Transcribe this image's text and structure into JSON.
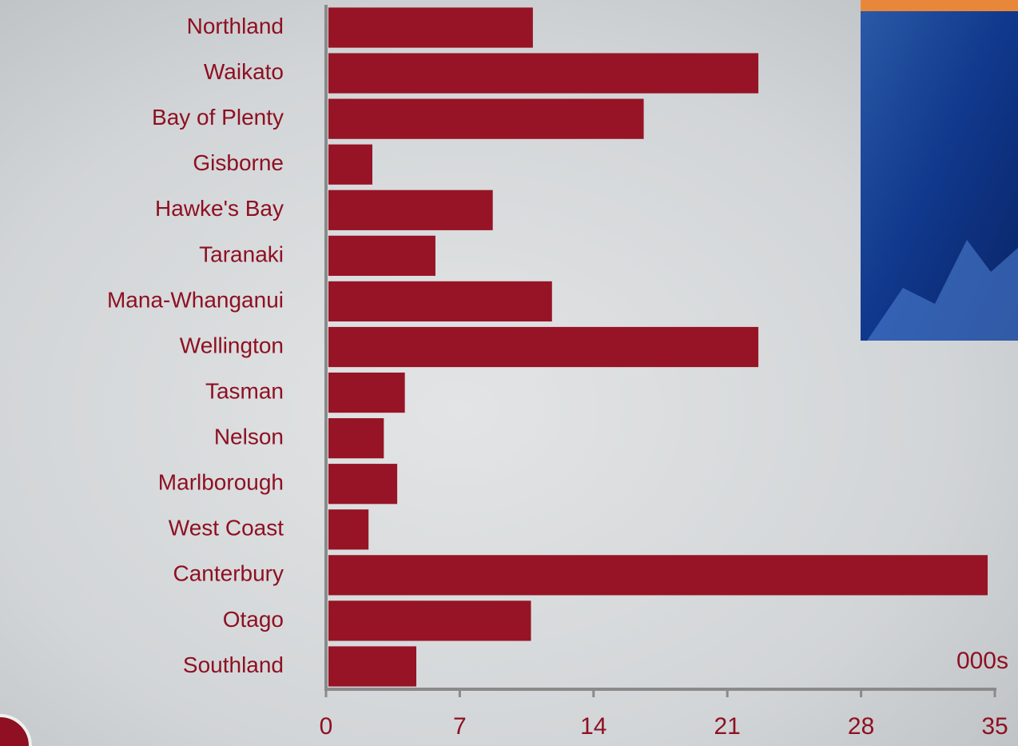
{
  "chart_data": {
    "type": "hbar",
    "unit_label": "000s",
    "categories": [
      "Northland",
      "Waikato",
      "Bay of Plenty",
      "Gisborne",
      "Hawke's Bay",
      "Taranaki",
      "Mana-Whanganui",
      "Wellington",
      "Tasman",
      "Nelson",
      "Marlborough",
      "West Coast",
      "Canterbury",
      "Otago",
      "Southland"
    ],
    "values": [
      10.7,
      22.5,
      16.5,
      2.3,
      8.6,
      5.6,
      11.7,
      22.5,
      4.0,
      2.9,
      3.6,
      2.1,
      34.5,
      10.6,
      4.6
    ],
    "color": "#961425",
    "xlim": [
      0,
      35
    ],
    "xticks": [
      0,
      7,
      14,
      21,
      28,
      35
    ]
  }
}
